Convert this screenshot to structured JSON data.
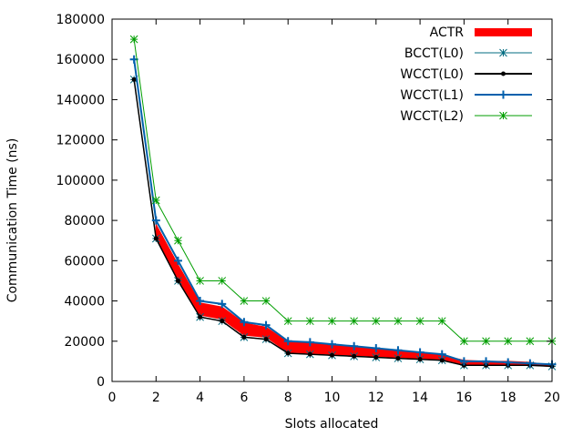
{
  "chart_data": {
    "type": "line",
    "xlabel": "Slots allocated",
    "ylabel": "Communication Time (ns)",
    "xlim": [
      0,
      20
    ],
    "ylim": [
      0,
      180000
    ],
    "xticks": [
      0,
      2,
      4,
      6,
      8,
      10,
      12,
      14,
      16,
      18,
      20
    ],
    "yticks": [
      0,
      20000,
      40000,
      60000,
      80000,
      100000,
      120000,
      140000,
      160000,
      180000
    ],
    "grid": false,
    "legend_position": "top-right",
    "x": [
      1,
      2,
      3,
      4,
      5,
      6,
      7,
      8,
      9,
      10,
      11,
      12,
      13,
      14,
      15,
      16,
      17,
      18,
      19,
      20
    ],
    "series": [
      {
        "name": "ACTR",
        "style": "band",
        "color": "#ff0000",
        "x": [
          2,
          3,
          4,
          5,
          6,
          7,
          8,
          9,
          10,
          11,
          12,
          13,
          14,
          15,
          16,
          17,
          18,
          19,
          20
        ],
        "lower": [
          71000,
          51000,
          33000,
          31000,
          23000,
          22000,
          14500,
          14000,
          13500,
          13000,
          12500,
          12000,
          11500,
          11000,
          8500,
          8000,
          8000,
          8000,
          7500
        ],
        "upper": [
          78000,
          58000,
          39000,
          37000,
          29000,
          27000,
          19500,
          19000,
          18000,
          17000,
          16000,
          15000,
          14000,
          13000,
          10500,
          10000,
          10000,
          9500,
          8000
        ]
      },
      {
        "name": "BCCT(L0)",
        "style": "line-star",
        "color": "#006b80",
        "values": [
          150000,
          71000,
          50000,
          32000,
          30000,
          22000,
          21000,
          14000,
          13500,
          13000,
          12500,
          12000,
          11500,
          11000,
          10500,
          8000,
          8000,
          8000,
          8000,
          7500
        ]
      },
      {
        "name": "WCCT(L0)",
        "style": "line-dot",
        "color": "#000000",
        "values": [
          150000,
          71000,
          50000,
          32000,
          30000,
          22000,
          21000,
          14000,
          13500,
          13000,
          12500,
          12000,
          11500,
          11000,
          10500,
          8000,
          8000,
          8000,
          8000,
          7500
        ]
      },
      {
        "name": "WCCT(L1)",
        "style": "line-plus",
        "color": "#0060ad",
        "values": [
          160000,
          80000,
          60000,
          40000,
          38500,
          29500,
          28000,
          20000,
          19500,
          18500,
          17500,
          16500,
          15500,
          14500,
          13500,
          10000,
          10000,
          9500,
          9000,
          8500
        ]
      },
      {
        "name": "WCCT(L2)",
        "style": "line-star",
        "color": "#009e00",
        "values": [
          170000,
          90000,
          70000,
          50000,
          50000,
          40000,
          40000,
          30000,
          30000,
          30000,
          30000,
          30000,
          30000,
          30000,
          30000,
          20000,
          20000,
          20000,
          20000,
          20000
        ]
      }
    ]
  }
}
